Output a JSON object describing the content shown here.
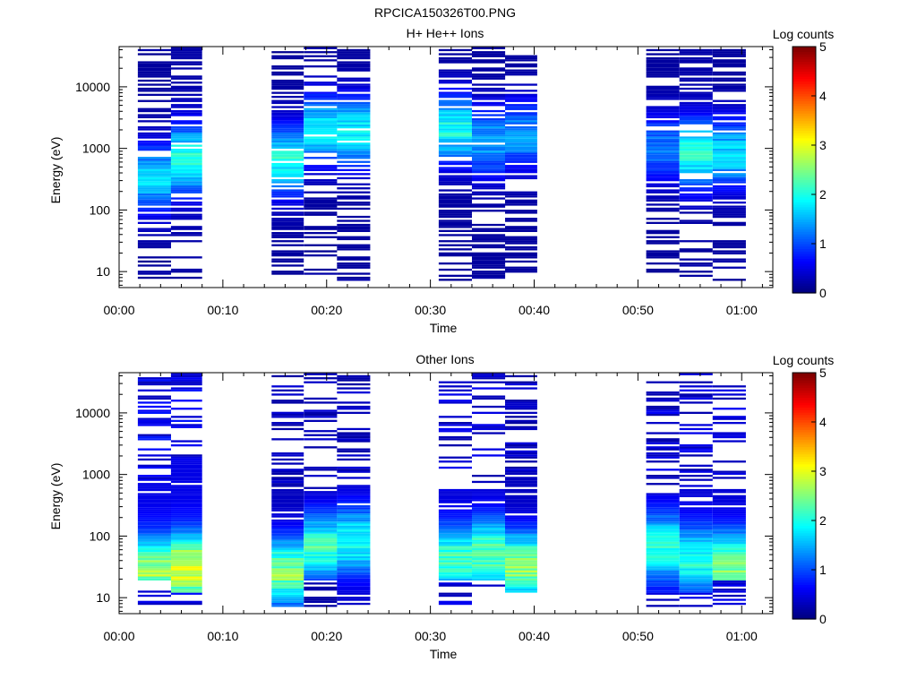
{
  "figure": {
    "title": "RPCICA150326T00.PNG"
  },
  "chart_data": [
    {
      "type": "heatmap",
      "title": "H+ He++ Ions",
      "xlabel": "Time",
      "ylabel": "Energy (eV)",
      "x_ticks": [
        "00:00",
        "00:10",
        "00:20",
        "00:30",
        "00:40",
        "00:50",
        "01:00"
      ],
      "x_range_minutes": [
        0,
        63
      ],
      "y_scale": "log",
      "y_range": [
        5.5,
        45000
      ],
      "y_ticks": [
        "10",
        "100",
        "1000",
        "10000"
      ],
      "colorbar": {
        "label": "Log counts",
        "range": [
          0,
          5
        ],
        "ticks": [
          "0",
          "1",
          "2",
          "3",
          "4",
          "5"
        ],
        "colormap": "jet"
      },
      "columns": [
        {
          "start_min": 1.8,
          "end_min": 5.0,
          "min_counts": 0.15,
          "max_counts": 1.9,
          "peak_log_energy": 2.5,
          "density": 0.6,
          "has_counts_below": 1.3,
          "gap_above": 4.4,
          "seed": 11
        },
        {
          "start_min": 5.0,
          "end_min": 8.0,
          "min_counts": 0.2,
          "max_counts": 2.4,
          "peak_log_energy": 2.8,
          "density": 0.55,
          "has_counts_below": 1.2,
          "gap_above": 4.6,
          "seed": 12
        },
        {
          "start_min": 14.7,
          "end_min": 17.8,
          "min_counts": 0.15,
          "max_counts": 2.3,
          "peak_log_energy": 2.8,
          "density": 0.6,
          "has_counts_below": 1.05,
          "gap_above": 4.5,
          "seed": 13
        },
        {
          "start_min": 17.8,
          "end_min": 21.0,
          "min_counts": 0.15,
          "max_counts": 2.2,
          "peak_log_energy": 3.3,
          "density": 0.55,
          "has_counts_below": 1.5,
          "gap_above": 4.6,
          "seed": 14
        },
        {
          "start_min": 21.0,
          "end_min": 24.2,
          "min_counts": 0.15,
          "max_counts": 2.2,
          "peak_log_energy": 3.25,
          "density": 0.55,
          "has_counts_below": 0.9,
          "gap_above": 4.6,
          "seed": 15
        },
        {
          "start_min": 30.8,
          "end_min": 34.0,
          "min_counts": 0.15,
          "max_counts": 2.3,
          "peak_log_energy": 3.3,
          "density": 0.6,
          "has_counts_below": 0.9,
          "gap_above": 4.6,
          "seed": 16
        },
        {
          "start_min": 34.0,
          "end_min": 37.2,
          "min_counts": 0.15,
          "max_counts": 1.7,
          "peak_log_energy": 3.1,
          "density": 0.6,
          "has_counts_below": 0.9,
          "gap_above": 4.6,
          "seed": 17
        },
        {
          "start_min": 37.2,
          "end_min": 40.3,
          "min_counts": 0.15,
          "max_counts": 1.6,
          "peak_log_energy": 3.2,
          "density": 0.55,
          "has_counts_below": 0.9,
          "gap_above": 4.6,
          "seed": 18
        },
        {
          "start_min": 50.8,
          "end_min": 54.0,
          "min_counts": 0.15,
          "max_counts": 1.4,
          "peak_log_energy": 3.0,
          "density": 0.55,
          "has_counts_below": 1.1,
          "gap_above": 4.6,
          "seed": 19
        },
        {
          "start_min": 54.0,
          "end_min": 57.2,
          "min_counts": 0.2,
          "max_counts": 2.4,
          "peak_log_energy": 2.9,
          "density": 0.6,
          "has_counts_below": 1.95,
          "gap_above": 4.6,
          "seed": 20
        },
        {
          "start_min": 57.2,
          "end_min": 60.4,
          "min_counts": 0.15,
          "max_counts": 2.0,
          "peak_log_energy": 2.9,
          "density": 0.6,
          "has_counts_below": 1.3,
          "gap_above": 4.6,
          "seed": 21
        }
      ]
    },
    {
      "type": "heatmap",
      "title": "Other Ions",
      "xlabel": "Time",
      "ylabel": "Energy (eV)",
      "x_ticks": [
        "00:00",
        "00:10",
        "00:20",
        "00:30",
        "00:40",
        "00:50",
        "01:00"
      ],
      "x_range_minutes": [
        0,
        63
      ],
      "y_scale": "log",
      "y_range": [
        5.5,
        45000
      ],
      "y_ticks": [
        "10",
        "100",
        "1000",
        "10000"
      ],
      "colorbar": {
        "label": "Log counts",
        "range": [
          0,
          5
        ],
        "ticks": [
          "0",
          "1",
          "2",
          "3",
          "4",
          "5"
        ],
        "colormap": "jet"
      },
      "columns": [
        {
          "start_min": 1.8,
          "end_min": 5.0,
          "min_counts": 0.5,
          "max_counts": 3.0,
          "peak_log_energy": 1.4,
          "density": 0.9,
          "has_counts_below": 1.25,
          "gap_above": 2.85,
          "seed": 31
        },
        {
          "start_min": 5.0,
          "end_min": 8.0,
          "min_counts": 0.5,
          "max_counts": 3.6,
          "peak_log_energy": 1.45,
          "density": 0.85,
          "has_counts_below": 1.05,
          "gap_above": 3.2,
          "seed": 32
        },
        {
          "start_min": 14.7,
          "end_min": 17.8,
          "min_counts": 0.3,
          "max_counts": 2.9,
          "peak_log_energy": 1.4,
          "density": 0.9,
          "has_counts_below": 0.8,
          "gap_above": 2.75,
          "seed": 33
        },
        {
          "start_min": 17.8,
          "end_min": 21.0,
          "min_counts": 0.3,
          "max_counts": 2.5,
          "peak_log_energy": 1.8,
          "density": 0.85,
          "has_counts_below": 1.25,
          "gap_above": 2.7,
          "seed": 34
        },
        {
          "start_min": 21.0,
          "end_min": 24.2,
          "min_counts": 0.3,
          "max_counts": 2.3,
          "peak_log_energy": 1.9,
          "density": 0.85,
          "has_counts_below": 0.8,
          "gap_above": 2.85,
          "seed": 35
        },
        {
          "start_min": 30.8,
          "end_min": 34.0,
          "min_counts": 0.4,
          "max_counts": 2.5,
          "peak_log_energy": 1.6,
          "density": 0.85,
          "has_counts_below": 1.25,
          "gap_above": 2.7,
          "seed": 36
        },
        {
          "start_min": 34.0,
          "end_min": 37.2,
          "min_counts": 0.4,
          "max_counts": 2.7,
          "peak_log_energy": 1.7,
          "density": 0.85,
          "has_counts_below": 1.25,
          "gap_above": 2.75,
          "seed": 37
        },
        {
          "start_min": 37.2,
          "end_min": 40.3,
          "min_counts": 0.3,
          "max_counts": 3.0,
          "peak_log_energy": 1.5,
          "density": 0.85,
          "has_counts_below": 1.05,
          "gap_above": 3.0,
          "seed": 38
        },
        {
          "start_min": 50.8,
          "end_min": 54.0,
          "min_counts": 0.4,
          "max_counts": 2.3,
          "peak_log_energy": 1.8,
          "density": 0.85,
          "has_counts_below": 1.05,
          "gap_above": 2.65,
          "seed": 39
        },
        {
          "start_min": 54.0,
          "end_min": 57.2,
          "min_counts": 0.4,
          "max_counts": 2.3,
          "peak_log_energy": 1.6,
          "density": 0.85,
          "has_counts_below": 1.05,
          "gap_above": 2.75,
          "seed": 40
        },
        {
          "start_min": 57.2,
          "end_min": 60.4,
          "min_counts": 0.4,
          "max_counts": 2.9,
          "peak_log_energy": 1.5,
          "density": 0.85,
          "has_counts_below": 1.25,
          "gap_above": 2.75,
          "seed": 41
        }
      ]
    }
  ]
}
